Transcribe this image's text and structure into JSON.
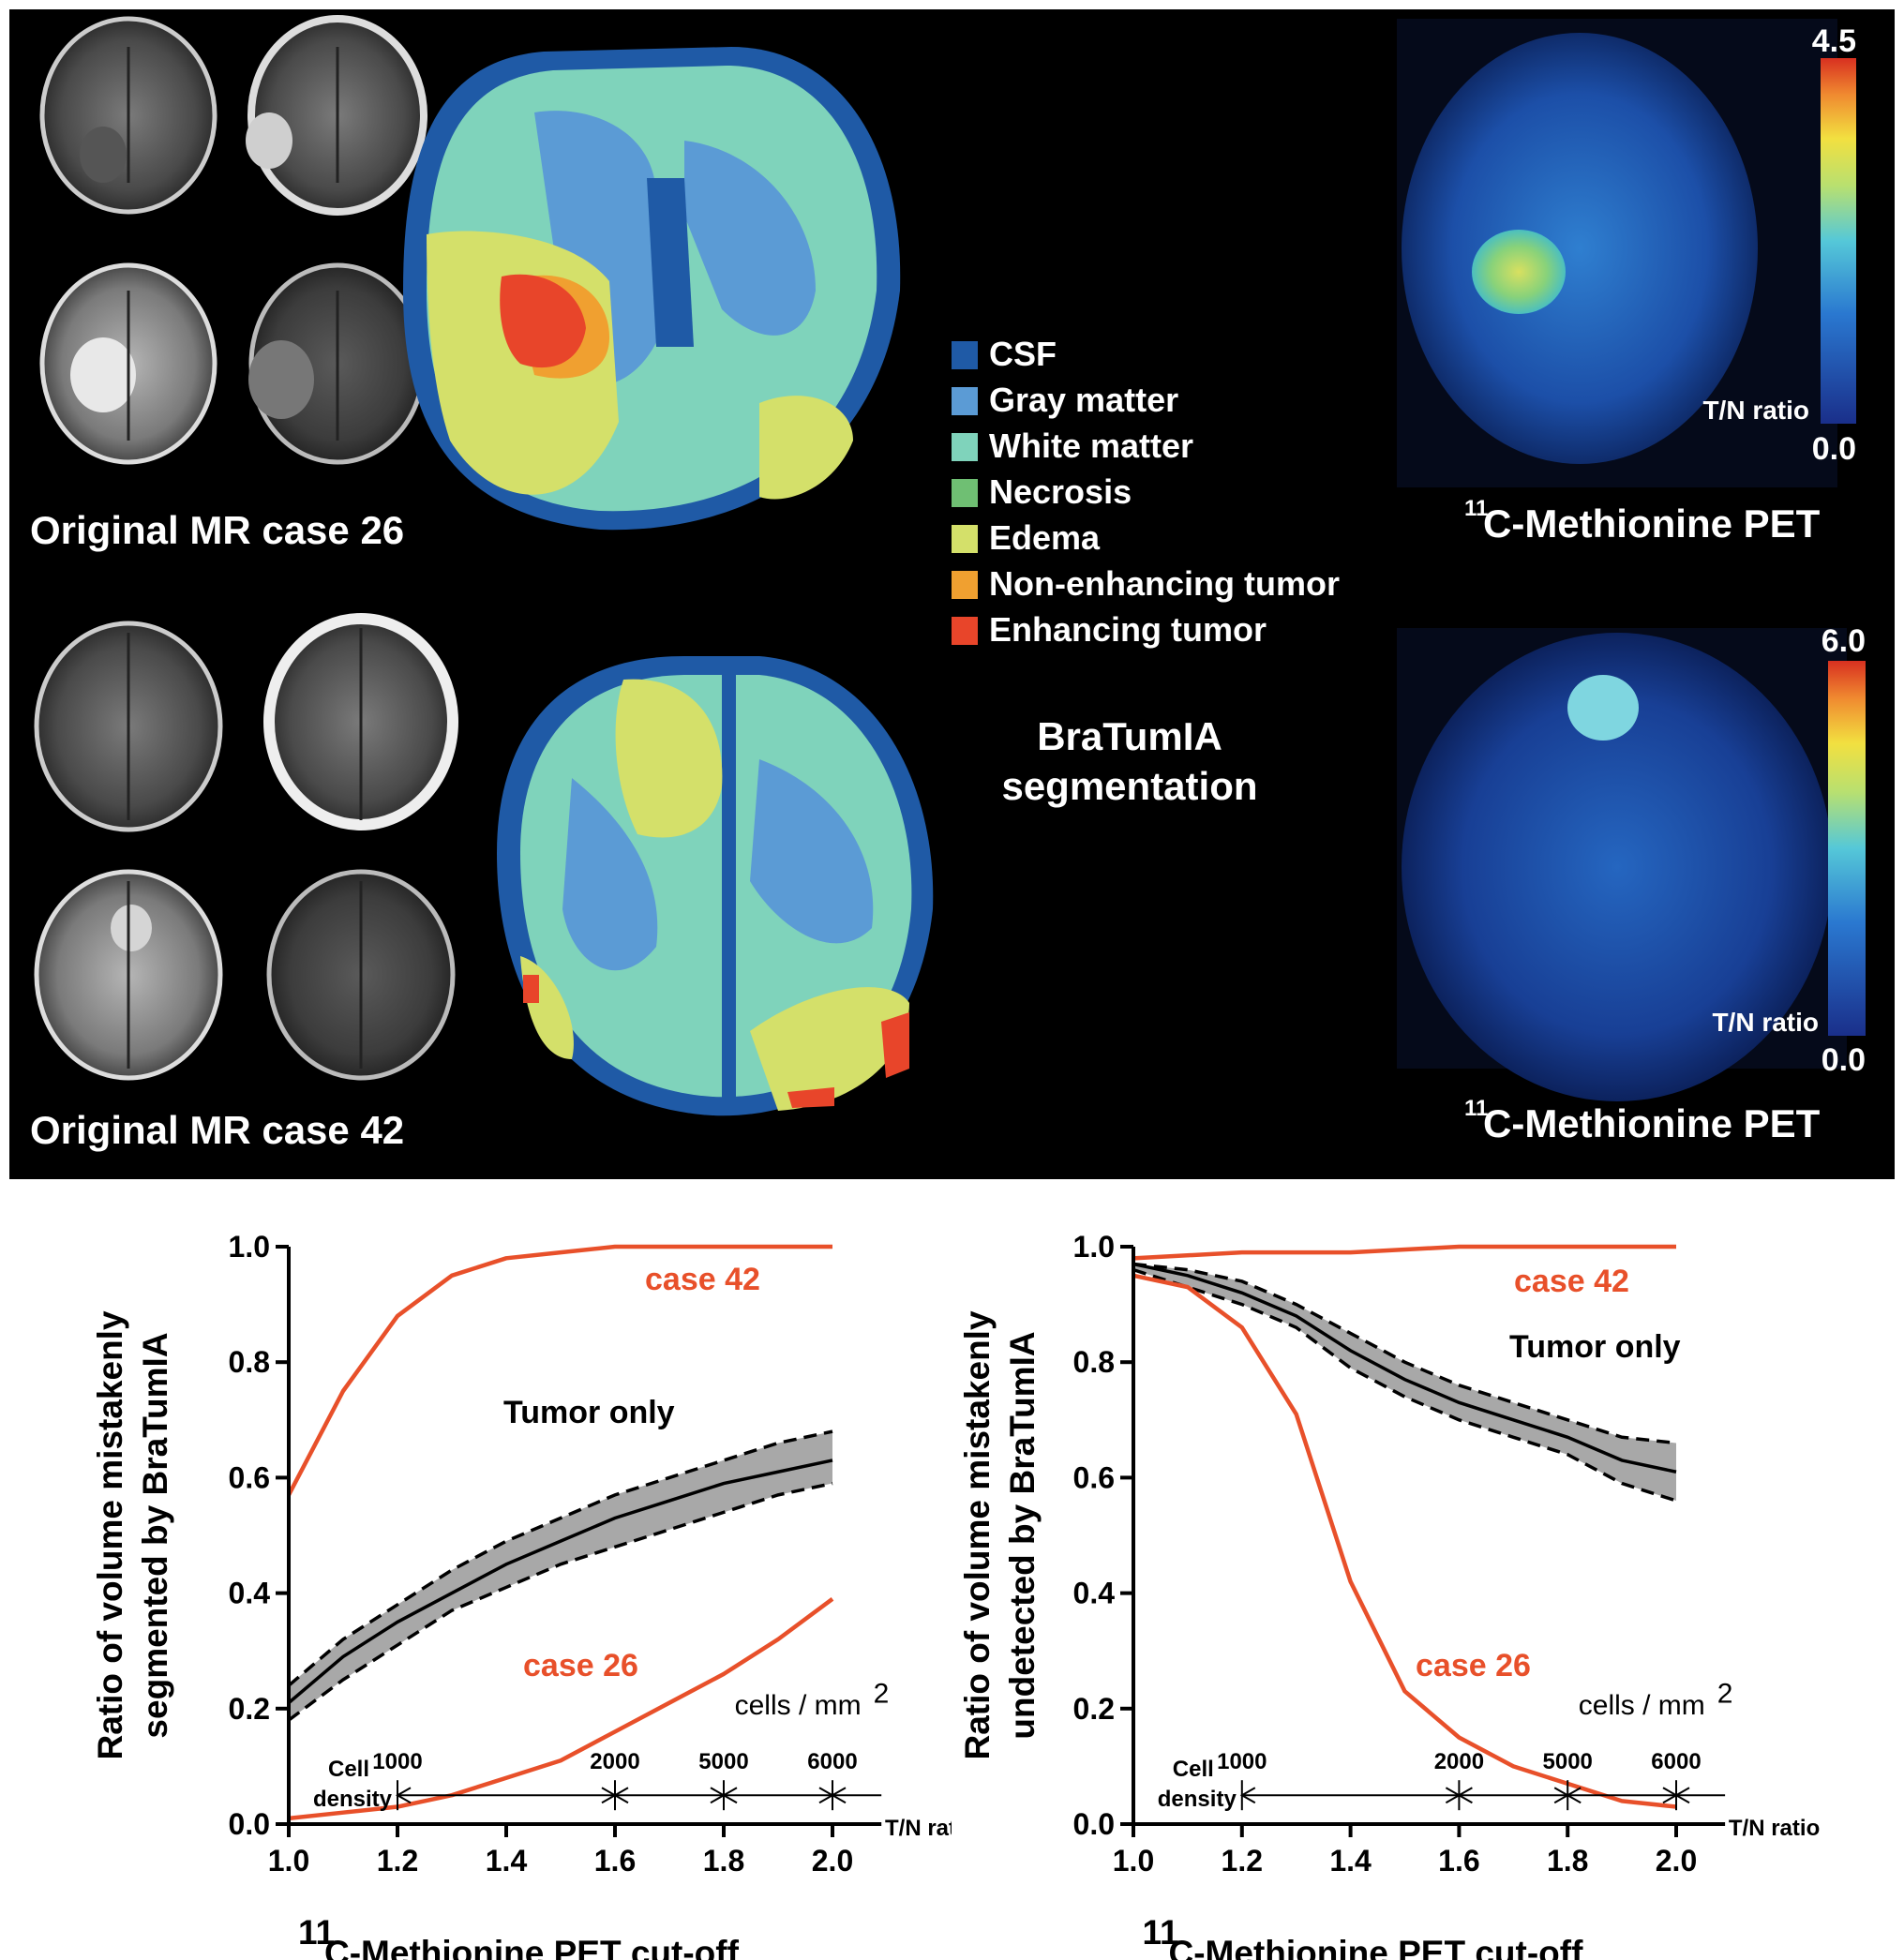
{
  "figure": {
    "mr_case_26_label": "Original MR case 26",
    "mr_case_42_label": "Original MR case 42",
    "pet_title_sup": "11",
    "pet_title": "C-Methionine PET",
    "colorbar_case26_max": "4.5",
    "colorbar_case26_min": "0.0",
    "colorbar_case42_max": "6.0",
    "colorbar_case42_min": "0.0",
    "colorbar_label": "T/N ratio",
    "segmentation_title_line1": "BraTumIA",
    "segmentation_title_line2": "segmentation",
    "legend": [
      {
        "label": "CSF",
        "color": "#1f5aa6"
      },
      {
        "label": "Gray matter",
        "color": "#5b9bd5"
      },
      {
        "label": "White matter",
        "color": "#7fd3bb"
      },
      {
        "label": "Necrosis",
        "color": "#6fbf73"
      },
      {
        "label": "Edema",
        "color": "#d4e06a"
      },
      {
        "label": "Non-enhancing tumor",
        "color": "#f0a030"
      },
      {
        "label": "Enhancing tumor",
        "color": "#e8452a"
      }
    ]
  },
  "chart_data": [
    {
      "type": "line",
      "ylabel_line1": "Ratio of volume mistakenly",
      "ylabel_line2": "segmented by BraTumIA",
      "xlabel_sup": "11",
      "xlabel": "C-Methionine PET cut-off",
      "x_axis_end_label": "T/N ratio",
      "xlim": [
        1.0,
        2.0
      ],
      "ylim": [
        0.0,
        1.0
      ],
      "x_ticks": [
        "1.0",
        "1.2",
        "1.4",
        "1.6",
        "1.8",
        "2.0"
      ],
      "y_ticks": [
        "0.0",
        "0.2",
        "0.4",
        "0.6",
        "0.8",
        "1.0"
      ],
      "annotations": {
        "tumor_only": "Tumor only",
        "case42": "case 42",
        "case26": "case 26"
      },
      "cell_density": {
        "label_line1": "Cell",
        "label_line2": "density",
        "unit": "cells / mm",
        "unit_sup": "2",
        "marks": [
          {
            "x": 1.2,
            "label": "1000"
          },
          {
            "x": 1.6,
            "label": "2000"
          },
          {
            "x": 1.8,
            "label": "5000"
          },
          {
            "x": 2.0,
            "label": "6000"
          }
        ]
      },
      "series": [
        {
          "name": "case 42",
          "color": "#e8502a",
          "x": [
            1.0,
            1.1,
            1.2,
            1.3,
            1.4,
            1.5,
            1.6,
            1.7,
            1.8,
            1.9,
            2.0
          ],
          "values": [
            0.57,
            0.75,
            0.88,
            0.95,
            0.98,
            0.99,
            1.0,
            1.0,
            1.0,
            1.0,
            1.0
          ]
        },
        {
          "name": "case 26",
          "color": "#e8502a",
          "x": [
            1.0,
            1.1,
            1.2,
            1.3,
            1.4,
            1.5,
            1.6,
            1.7,
            1.8,
            1.9,
            2.0
          ],
          "values": [
            0.01,
            0.02,
            0.03,
            0.05,
            0.08,
            0.11,
            0.16,
            0.21,
            0.26,
            0.32,
            0.39
          ]
        },
        {
          "name": "Tumor only",
          "color": "#000000",
          "x": [
            1.0,
            1.1,
            1.2,
            1.3,
            1.4,
            1.5,
            1.6,
            1.7,
            1.8,
            1.9,
            2.0
          ],
          "values": [
            0.21,
            0.29,
            0.35,
            0.4,
            0.45,
            0.49,
            0.53,
            0.56,
            0.59,
            0.61,
            0.63
          ],
          "upper": [
            0.24,
            0.32,
            0.38,
            0.44,
            0.49,
            0.53,
            0.57,
            0.6,
            0.63,
            0.66,
            0.68
          ],
          "lower": [
            0.18,
            0.25,
            0.31,
            0.37,
            0.41,
            0.45,
            0.48,
            0.51,
            0.54,
            0.57,
            0.59
          ]
        }
      ]
    },
    {
      "type": "line",
      "ylabel_line1": "Ratio of volume mistakenly",
      "ylabel_line2": "undetected by BraTumIA",
      "xlabel_sup": "11",
      "xlabel": "C-Methionine PET cut-off",
      "x_axis_end_label": "T/N ratio",
      "xlim": [
        1.0,
        2.0
      ],
      "ylim": [
        0.0,
        1.0
      ],
      "x_ticks": [
        "1.0",
        "1.2",
        "1.4",
        "1.6",
        "1.8",
        "2.0"
      ],
      "y_ticks": [
        "0.0",
        "0.2",
        "0.4",
        "0.6",
        "0.8",
        "1.0"
      ],
      "annotations": {
        "tumor_only": "Tumor only",
        "case42": "case 42",
        "case26": "case 26"
      },
      "cell_density": {
        "label_line1": "Cell",
        "label_line2": "density",
        "unit": "cells / mm",
        "unit_sup": "2",
        "marks": [
          {
            "x": 1.2,
            "label": "1000"
          },
          {
            "x": 1.6,
            "label": "2000"
          },
          {
            "x": 1.8,
            "label": "5000"
          },
          {
            "x": 2.0,
            "label": "6000"
          }
        ]
      },
      "series": [
        {
          "name": "case 42",
          "color": "#e8502a",
          "x": [
            1.0,
            1.2,
            1.4,
            1.6,
            1.8,
            2.0
          ],
          "values": [
            0.98,
            0.99,
            0.99,
            1.0,
            1.0,
            1.0
          ]
        },
        {
          "name": "case 26",
          "color": "#e8502a",
          "x": [
            1.0,
            1.1,
            1.2,
            1.3,
            1.4,
            1.5,
            1.6,
            1.7,
            1.8,
            1.9,
            2.0
          ],
          "values": [
            0.95,
            0.93,
            0.86,
            0.71,
            0.42,
            0.23,
            0.15,
            0.1,
            0.07,
            0.04,
            0.03
          ]
        },
        {
          "name": "Tumor only",
          "color": "#000000",
          "x": [
            1.0,
            1.1,
            1.2,
            1.3,
            1.4,
            1.5,
            1.6,
            1.7,
            1.8,
            1.9,
            2.0
          ],
          "values": [
            0.97,
            0.95,
            0.92,
            0.88,
            0.82,
            0.77,
            0.73,
            0.7,
            0.67,
            0.63,
            0.61
          ],
          "upper": [
            0.97,
            0.96,
            0.94,
            0.9,
            0.85,
            0.8,
            0.76,
            0.73,
            0.7,
            0.67,
            0.66
          ],
          "lower": [
            0.96,
            0.93,
            0.9,
            0.86,
            0.79,
            0.74,
            0.7,
            0.67,
            0.64,
            0.59,
            0.56
          ]
        }
      ]
    }
  ]
}
